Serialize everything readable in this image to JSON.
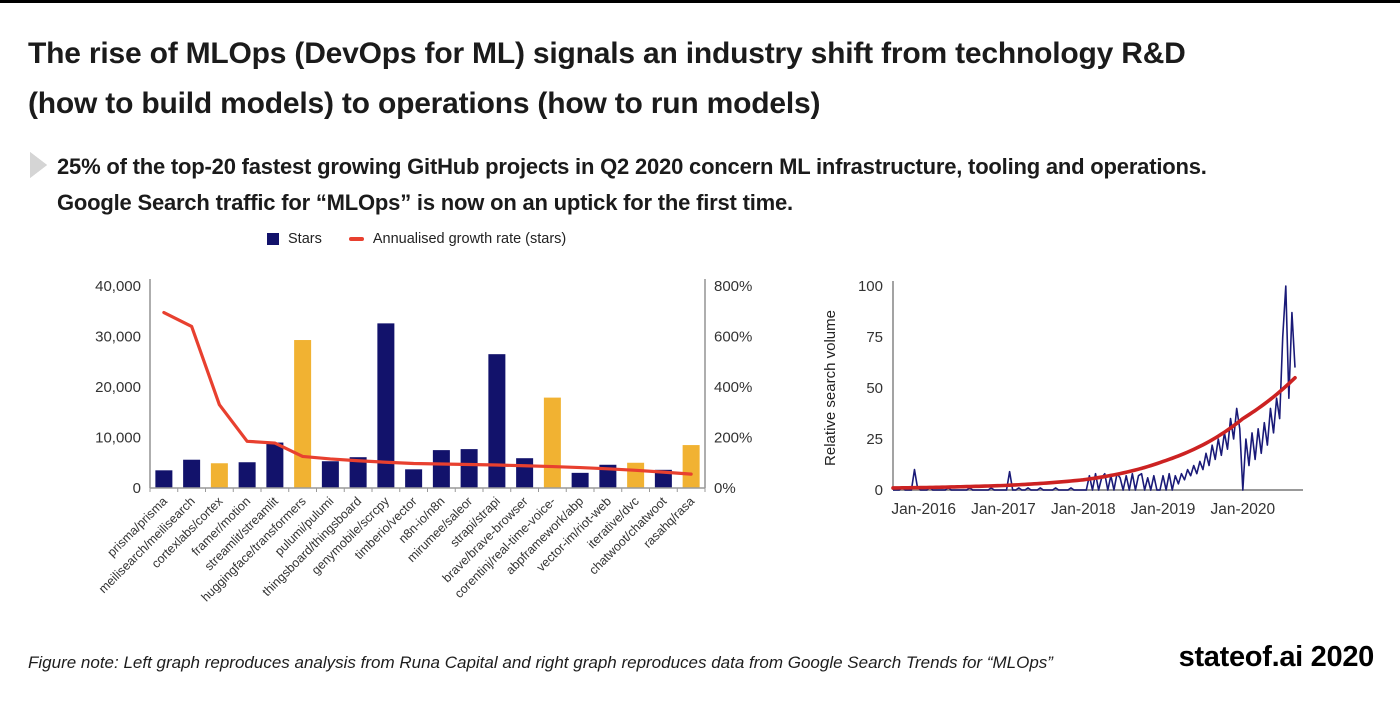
{
  "title": {
    "line1": "The rise of MLOps (DevOps for ML) signals an industry shift from technology R&D",
    "line2": "(how to build models) to operations (how to run models)"
  },
  "bullet": {
    "line1": "25% of the top-20 fastest growing GitHub projects in Q2 2020 concern ML infrastructure, tooling and operations.",
    "line2": "Google Search traffic for “MLOps” is now on an uptick for the first time."
  },
  "footer": {
    "note": "Figure note: Left graph reproduces analysis from Runa Capital and right graph reproduces data from Google Search Trends for “MLOps”",
    "brand": "stateof.ai 2020"
  },
  "colors": {
    "navy": "#12126b",
    "yellow": "#f1b232",
    "red": "#e8402f",
    "trend_red": "#cc2222",
    "search_navy": "#1a1a78",
    "axis_gray": "#999999",
    "tick_text": "#333333"
  },
  "chart_data": [
    {
      "type": "bar",
      "legend": [
        "Stars",
        "Annualised growth rate (stars)"
      ],
      "categories": [
        "prisma/prisma",
        "meilisearch/meilisearch",
        "cortexlabs/cortex",
        "framer/motion",
        "streamlit/streamlit",
        "huggingface/transformers",
        "pulumi/pulumi",
        "thingsboard/thingsboard",
        "genymobile/scrcpy",
        "timberio/vector",
        "n8n-io/n8n",
        "mirumee/saleor",
        "strapi/strapi",
        "brave/brave-browser",
        "corentinj/real-time-voice-",
        "abpframework/abp",
        "vector-im/riot-web",
        "iterative/dvc",
        "chatwoot/chatwoot",
        "rasahq/rasa"
      ],
      "series": [
        {
          "name": "Stars",
          "type": "bar",
          "axis": "left",
          "values": [
            3500,
            5600,
            4900,
            5100,
            9000,
            29300,
            5300,
            6100,
            32600,
            3700,
            7500,
            7700,
            26500,
            5900,
            17900,
            3000,
            4600,
            5000,
            3600,
            8500
          ]
        },
        {
          "name": "Annualised growth rate (stars)",
          "type": "line",
          "axis": "right",
          "values": [
            695,
            640,
            330,
            185,
            178,
            125,
            115,
            108,
            102,
            97,
            95,
            93,
            91,
            88,
            85,
            81,
            76,
            70,
            63,
            55
          ]
        }
      ],
      "ml_highlight_indices": [
        2,
        5,
        14,
        17,
        19
      ],
      "left_axis": {
        "tick_labels": [
          "0",
          "10,000",
          "20,000",
          "30,000",
          "40,000"
        ],
        "max": 40000
      },
      "right_axis": {
        "tick_labels": [
          "0%",
          "200%",
          "400%",
          "600%",
          "800%"
        ],
        "max": 800
      }
    },
    {
      "type": "line",
      "ylabel": "Relative search volume",
      "x_tick_labels": [
        "Jan-2016",
        "Jan-2017",
        "Jan-2018",
        "Jan-2019",
        "Jan-2020"
      ],
      "x_tick_indices": [
        10,
        36,
        62,
        88,
        114
      ],
      "y_ticks": [
        0,
        25,
        50,
        75,
        100
      ],
      "ylim": [
        0,
        100
      ],
      "series": [
        {
          "name": "MLOps relative search volume",
          "values": [
            0,
            0,
            0,
            1,
            0,
            0,
            0,
            10,
            1,
            0,
            0,
            0,
            1,
            0,
            0,
            0,
            0,
            0,
            1,
            0,
            0,
            0,
            0,
            0,
            0,
            1,
            0,
            0,
            0,
            0,
            0,
            0,
            1,
            0,
            0,
            0,
            0,
            0,
            9,
            0,
            0,
            1,
            0,
            0,
            1,
            0,
            0,
            0,
            1,
            0,
            0,
            0,
            0,
            1,
            0,
            0,
            0,
            0,
            1,
            0,
            0,
            0,
            0,
            0,
            7,
            0,
            8,
            0,
            6,
            8,
            0,
            7,
            0,
            8,
            6,
            0,
            7,
            0,
            8,
            0,
            7,
            8,
            0,
            6,
            0,
            7,
            0,
            0,
            7,
            0,
            8,
            0,
            7,
            3,
            8,
            5,
            10,
            7,
            12,
            8,
            14,
            10,
            18,
            12,
            22,
            15,
            25,
            17,
            28,
            20,
            35,
            25,
            40,
            30,
            0,
            25,
            12,
            28,
            15,
            30,
            18,
            33,
            22,
            40,
            28,
            45,
            35,
            75,
            100,
            45,
            87,
            60
          ]
        },
        {
          "name": "Smoothed trend",
          "anchors": [
            [
              0,
              1.0
            ],
            [
              10,
              1.2
            ],
            [
              36,
              2.2
            ],
            [
              62,
              5
            ],
            [
              88,
              14
            ],
            [
              114,
              35
            ],
            [
              131,
              55
            ]
          ]
        }
      ]
    }
  ]
}
